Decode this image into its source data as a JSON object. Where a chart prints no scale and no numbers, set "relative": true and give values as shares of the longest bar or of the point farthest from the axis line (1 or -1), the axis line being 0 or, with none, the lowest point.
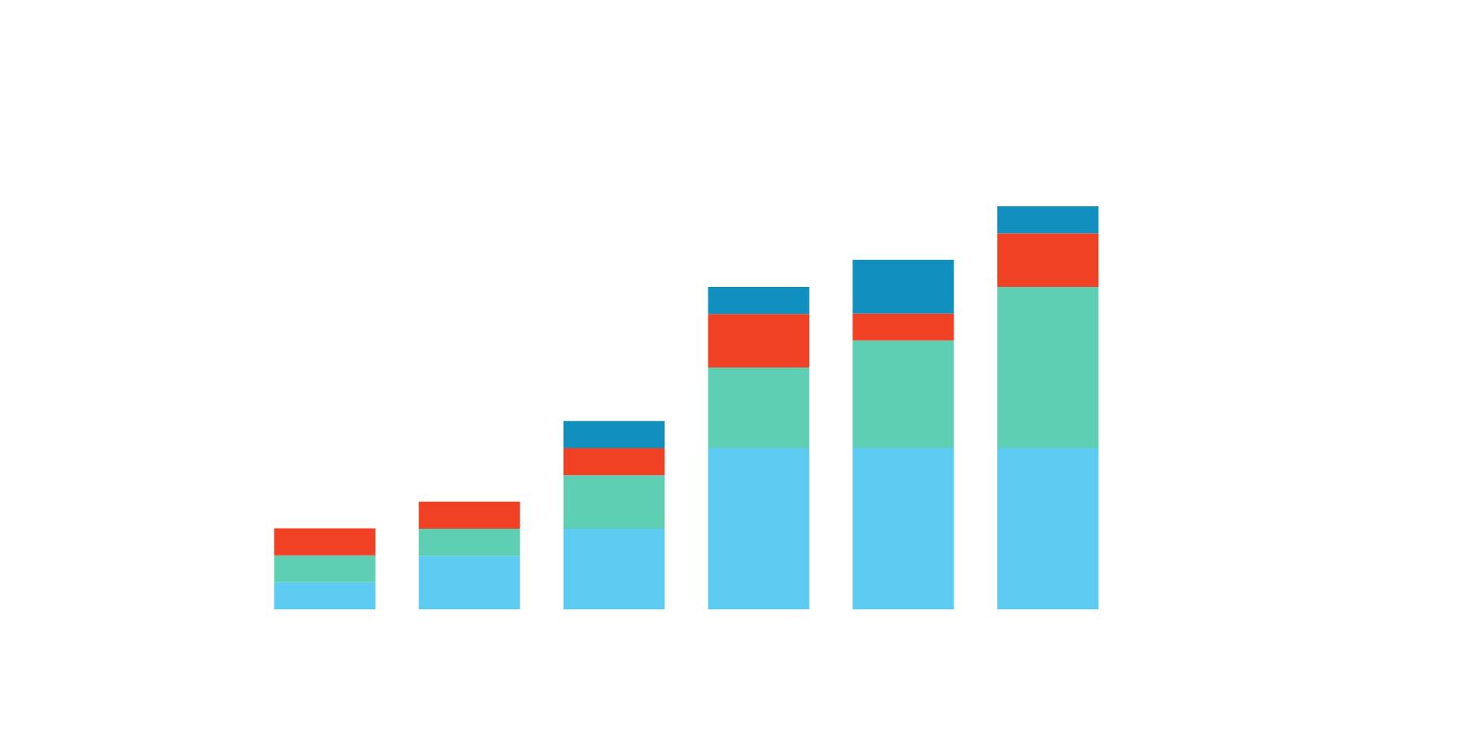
{
  "chart_data": {
    "type": "bar",
    "stacked": true,
    "relative": true,
    "grid": false,
    "categories": [
      null,
      null,
      null,
      null,
      null,
      null
    ],
    "series": [
      {
        "color": "#5ecbf2",
        "values": [
          0.067,
          0.133,
          0.2,
          0.4,
          0.4,
          0.4
        ]
      },
      {
        "color": "#5ecfb2",
        "values": [
          0.067,
          0.067,
          0.133,
          0.2,
          0.267,
          0.4
        ]
      },
      {
        "color": "#f04124",
        "values": [
          0.067,
          0.067,
          0.067,
          0.133,
          0.067,
          0.133
        ]
      },
      {
        "color": "#118fbe",
        "values": [
          0,
          0,
          0.067,
          0.067,
          0.133,
          0.067
        ]
      }
    ]
  }
}
